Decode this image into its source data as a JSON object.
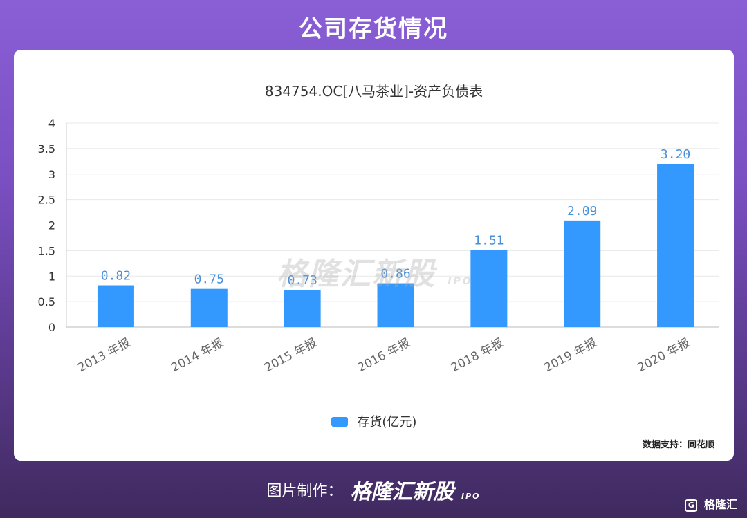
{
  "header": {
    "title": "公司存货情况"
  },
  "chart_data": {
    "type": "bar",
    "title": "834754.OC[八马茶业]-资产负债表",
    "categories": [
      "2013 年报",
      "2014 年报",
      "2015 年报",
      "2016 年报",
      "2018 年报",
      "2019 年报",
      "2020 年报"
    ],
    "series": [
      {
        "name": "存货(亿元)",
        "values": [
          0.82,
          0.75,
          0.73,
          0.86,
          1.51,
          2.09,
          3.2
        ],
        "labels": [
          "0.82",
          "0.75",
          "0.73",
          "0.86",
          "1.51",
          "2.09",
          "3.20"
        ]
      }
    ],
    "y_ticks": [
      "0",
      "0.5",
      "1",
      "1.5",
      "2",
      "2.5",
      "3",
      "3.5",
      "4"
    ],
    "ylim": [
      0,
      4
    ],
    "grid": true,
    "legend": "bottom-center",
    "bar_color": "#3399ff",
    "label_color": "#4a90d9"
  },
  "source": {
    "text": "数据支持：同花顺"
  },
  "watermark": {
    "text": "格隆汇新股",
    "sub": "IPO"
  },
  "footer": {
    "label": "图片制作：",
    "logo": "格隆汇新股",
    "logo_sub": "IPO"
  },
  "corner": {
    "icon": "G",
    "text": "格隆汇"
  }
}
